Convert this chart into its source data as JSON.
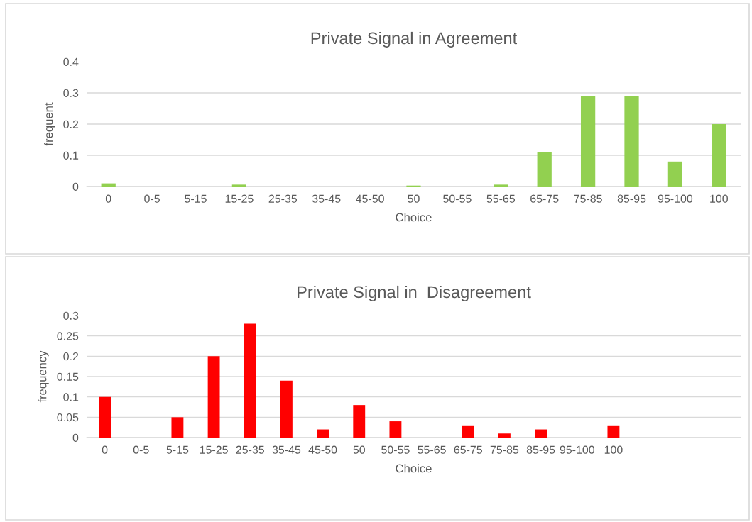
{
  "chart_data": [
    {
      "type": "bar",
      "title": "Private Signal in Agreement",
      "xlabel": "Choice",
      "ylabel": "frequent",
      "categories": [
        "0",
        "0-5",
        "5-15",
        "15-25",
        "25-35",
        "35-45",
        "45-50",
        "50",
        "50-55",
        "55-65",
        "65-75",
        "75-85",
        "85-95",
        "95-100",
        "100"
      ],
      "values": [
        0.01,
        0,
        0,
        0.006,
        0,
        0,
        0,
        0.003,
        0,
        0.006,
        0.11,
        0.29,
        0.29,
        0.08,
        0.2
      ],
      "color": "#92d050",
      "ylim": [
        0,
        0.4
      ],
      "yticks": [
        0,
        0.1,
        0.2,
        0.3,
        0.4
      ],
      "grid": "y",
      "legend": false
    },
    {
      "type": "bar",
      "title": "Private Signal in  Disagreement",
      "xlabel": "Choice",
      "ylabel": "frequency",
      "categories": [
        "0",
        "0-5",
        "5-15",
        "15-25",
        "25-35",
        "35-45",
        "45-50",
        "50",
        "50-55",
        "55-65",
        "65-75",
        "75-85",
        "85-95",
        "95-100",
        "100",
        null,
        null,
        null
      ],
      "values": [
        0.1,
        0,
        0.05,
        0.2,
        0.28,
        0.14,
        0.02,
        0.08,
        0.04,
        0,
        0.03,
        0.01,
        0.02,
        0,
        0.03,
        null,
        null,
        null
      ],
      "color": "#ff0000",
      "ylim": [
        0,
        0.3
      ],
      "yticks": [
        0,
        0.05,
        0.1,
        0.15,
        0.2,
        0.25,
        0.3
      ],
      "grid": "y",
      "legend": false
    }
  ]
}
